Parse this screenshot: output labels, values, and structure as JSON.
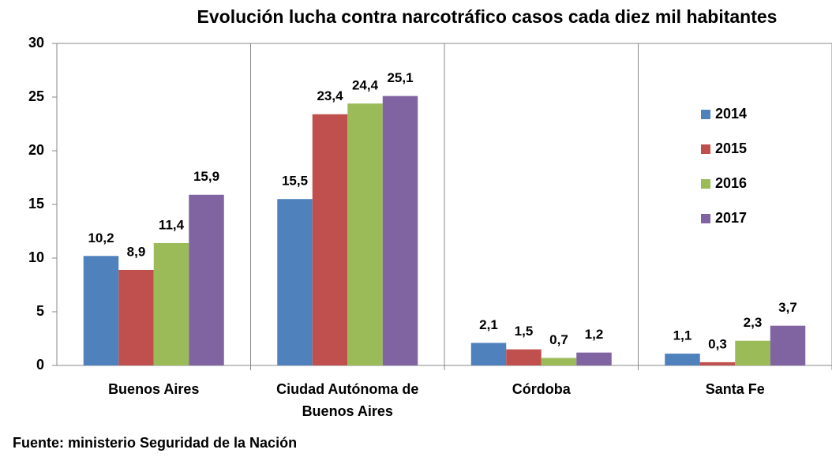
{
  "chart_data": {
    "type": "bar",
    "title": "Evolución lucha contra narcotráfico casos cada diez mil habitantes",
    "source": "Fuente: ministerio Seguridad de la Nación",
    "categories": [
      "Buenos Aires",
      "Ciudad Autónoma de Buenos Aires",
      "Córdoba",
      "Santa Fe"
    ],
    "series": [
      {
        "name": "2014",
        "color": "#4f81bd",
        "values": [
          10.2,
          15.5,
          2.1,
          1.1
        ],
        "value_labels": [
          "10,2",
          "15,5",
          "2,1",
          "1,1"
        ]
      },
      {
        "name": "2015",
        "color": "#c0504d",
        "values": [
          8.9,
          23.4,
          1.5,
          0.3
        ],
        "value_labels": [
          "8,9",
          "23,4",
          "1,5",
          "0,3"
        ]
      },
      {
        "name": "2016",
        "color": "#9bbb59",
        "values": [
          11.4,
          24.4,
          0.7,
          2.3
        ],
        "value_labels": [
          "11,4",
          "24,4",
          "0,7",
          "2,3"
        ]
      },
      {
        "name": "2017",
        "color": "#8064a2",
        "values": [
          15.9,
          25.1,
          1.2,
          3.7
        ],
        "value_labels": [
          "15,9",
          "25,1",
          "1,2",
          "3,7"
        ]
      }
    ],
    "ylim": [
      0,
      30
    ],
    "yticks": [
      0,
      5,
      10,
      15,
      20,
      25,
      30
    ],
    "legend": "right"
  }
}
